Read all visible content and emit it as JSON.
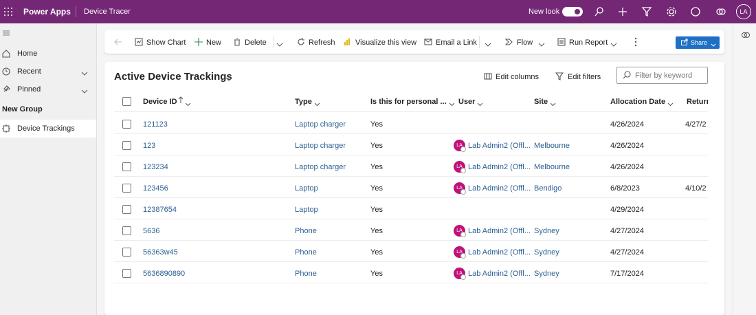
{
  "header": {
    "app_name": "Power Apps",
    "page_name": "Device Tracer",
    "new_look": "New look",
    "avatar": "LA"
  },
  "nav": {
    "items": [
      "Home",
      "Recent",
      "Pinned"
    ],
    "group": "New Group",
    "selected": "Device Trackings"
  },
  "command_bar": {
    "items": [
      "Show Chart",
      "New",
      "Delete",
      "Refresh",
      "Visualize this view",
      "Email a Link",
      "Flow",
      "Run Report"
    ],
    "share": "Share"
  },
  "view": {
    "title": "Active Device Trackings",
    "edit_columns": "Edit columns",
    "edit_filters": "Edit filters",
    "filter_placeholder": "Filter by keyword"
  },
  "table": {
    "columns": [
      "Device ID",
      "Type",
      "Is this for personal ...",
      "User",
      "Site",
      "Allocation Date",
      "Return"
    ],
    "rows": [
      [
        "121123",
        "Laptop charger",
        "Yes",
        null,
        null,
        "4/26/2024",
        "4/27/2"
      ],
      [
        "123",
        "Laptop charger",
        "Yes",
        "Lab Admin2 (Offl...",
        "Melbourne",
        "4/26/2024",
        null
      ],
      [
        "123234",
        "Laptop charger",
        "Yes",
        "Lab Admin2 (Offl...",
        "Melbourne",
        "4/26/2024",
        null
      ],
      [
        "123456",
        "Laptop",
        "Yes",
        "Lab Admin2 (Offl...",
        "Bendigo",
        "6/8/2023",
        "4/10/2"
      ],
      [
        "12387654",
        "Laptop",
        "Yes",
        null,
        null,
        "4/29/2024",
        null
      ],
      [
        "5636",
        "Phone",
        "Yes",
        "Lab Admin2 (Offl...",
        "Sydney",
        "4/27/2024",
        null
      ],
      [
        "56363w45",
        "Phone",
        "Yes",
        "Lab Admin2 (Offl...",
        "Sydney",
        "4/27/2024",
        null
      ],
      [
        "5636890890",
        "Phone",
        "Yes",
        "Lab Admin2 (Offl...",
        "Sydney",
        "7/17/2024",
        null
      ]
    ],
    "user_initials": "LA"
  }
}
